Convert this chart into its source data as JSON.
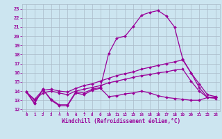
{
  "xlabel": "Windchill (Refroidissement éolien,°C)",
  "bg_color": "#cce5f0",
  "grid_color": "#aabbc8",
  "line_color": "#990099",
  "ylim": [
    11.8,
    23.5
  ],
  "xlim": [
    -0.5,
    23.5
  ],
  "yticks": [
    12,
    13,
    14,
    15,
    16,
    17,
    18,
    19,
    20,
    21,
    22,
    23
  ],
  "xticks": [
    0,
    1,
    2,
    3,
    4,
    5,
    6,
    7,
    8,
    9,
    10,
    11,
    12,
    13,
    14,
    15,
    16,
    17,
    18,
    19,
    20,
    21,
    22,
    23
  ],
  "xtick_labels": [
    "0",
    "1",
    "2",
    "3",
    "4",
    "5",
    "6",
    "7",
    "8",
    "9",
    "10",
    "11",
    "12",
    "13",
    "14",
    "15",
    "16",
    "17",
    "18",
    "19",
    "20",
    "21",
    "22",
    "23"
  ],
  "series1_x": [
    0,
    1,
    2,
    3,
    4,
    5,
    6,
    7,
    8,
    9,
    10,
    11,
    12,
    13,
    14,
    15,
    16,
    17,
    18,
    19,
    20,
    21,
    22,
    23
  ],
  "series1_y": [
    13.9,
    12.7,
    14.2,
    13.1,
    12.5,
    12.5,
    13.9,
    13.8,
    14.2,
    14.4,
    18.1,
    19.8,
    20.0,
    21.1,
    22.3,
    22.6,
    22.8,
    22.2,
    21.0,
    17.5,
    16.0,
    14.4,
    13.3,
    13.3
  ],
  "series2_x": [
    0,
    1,
    2,
    3,
    4,
    5,
    6,
    7,
    8,
    9,
    10,
    11,
    12,
    13,
    14,
    15,
    16,
    17,
    18,
    19,
    20,
    21,
    22,
    23
  ],
  "series2_y": [
    13.9,
    13.1,
    14.1,
    14.2,
    14.0,
    13.9,
    14.3,
    14.6,
    14.8,
    15.1,
    15.4,
    15.7,
    15.9,
    16.1,
    16.4,
    16.6,
    16.8,
    17.0,
    17.2,
    17.4,
    16.0,
    14.8,
    13.6,
    13.4
  ],
  "series3_x": [
    0,
    1,
    2,
    3,
    4,
    5,
    6,
    7,
    8,
    9,
    10,
    11,
    12,
    13,
    14,
    15,
    16,
    17,
    18,
    19,
    20,
    21,
    22,
    23
  ],
  "series3_y": [
    13.9,
    13.0,
    13.8,
    14.0,
    13.8,
    13.6,
    14.0,
    14.2,
    14.4,
    14.6,
    14.9,
    15.1,
    15.3,
    15.5,
    15.7,
    15.8,
    16.0,
    16.1,
    16.3,
    16.4,
    15.1,
    14.0,
    13.3,
    13.2
  ],
  "series4_x": [
    0,
    1,
    2,
    3,
    4,
    5,
    6,
    7,
    8,
    9,
    10,
    11,
    12,
    13,
    14,
    15,
    16,
    17,
    18,
    19,
    20,
    21,
    22,
    23
  ],
  "series4_y": [
    13.9,
    12.6,
    14.2,
    13.0,
    12.4,
    12.4,
    13.8,
    13.6,
    14.1,
    14.3,
    13.4,
    13.5,
    13.7,
    13.8,
    14.0,
    13.8,
    13.5,
    13.3,
    13.2,
    13.1,
    13.0,
    13.0,
    13.3,
    13.3
  ]
}
